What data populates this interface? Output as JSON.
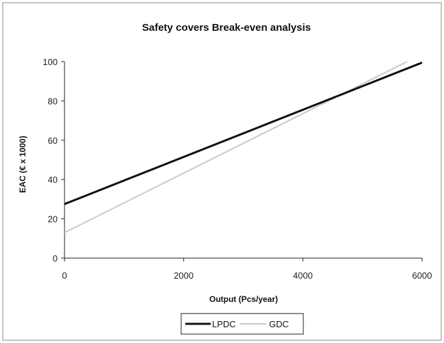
{
  "chart_data": {
    "type": "line",
    "title": "Safety covers Break-even analysis",
    "xlabel": "Output (Pcs/year)",
    "ylabel": "EAC (€ x 1000)",
    "xlim": [
      0,
      6000
    ],
    "ylim": [
      0,
      100
    ],
    "x_ticks": [
      "0",
      "2000",
      "4000",
      "6000"
    ],
    "y_ticks": [
      "0",
      "20",
      "40",
      "60",
      "80",
      "100"
    ],
    "grid": false,
    "legend_position": "bottom",
    "series": [
      {
        "name": "LPDC",
        "color": "#111111",
        "x": [
          0,
          6000
        ],
        "y": [
          27.5,
          99.5
        ]
      },
      {
        "name": "GDC",
        "color": "#c8c8c8",
        "x": [
          0,
          5750
        ],
        "y": [
          13,
          100
        ]
      }
    ]
  }
}
